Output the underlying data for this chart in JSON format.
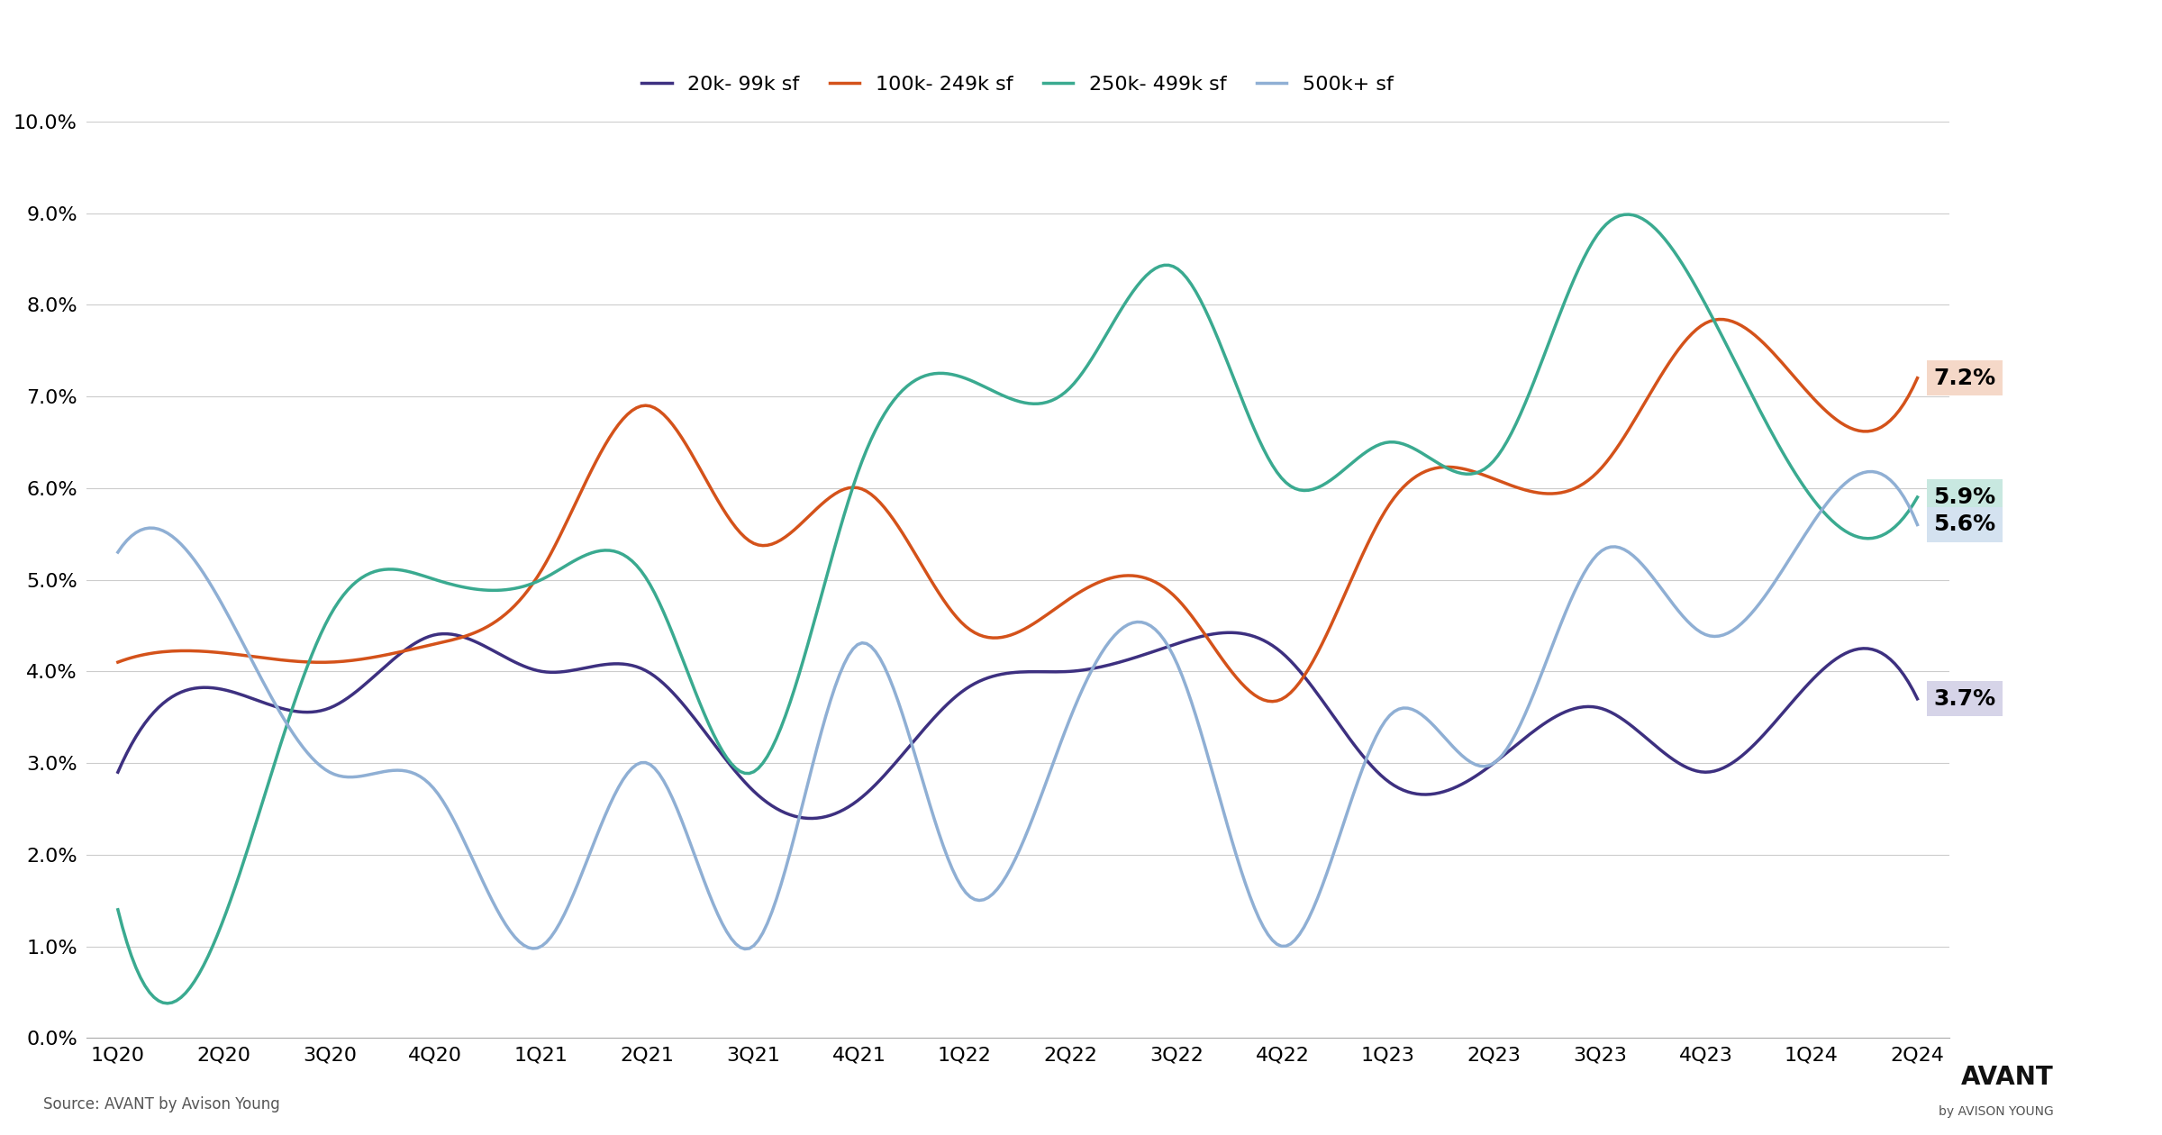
{
  "quarters": [
    "1Q20",
    "2Q20",
    "3Q20",
    "4Q20",
    "1Q21",
    "2Q21",
    "3Q21",
    "4Q21",
    "1Q22",
    "2Q22",
    "3Q22",
    "4Q22",
    "1Q23",
    "2Q23",
    "3Q23",
    "4Q23",
    "1Q24",
    "2Q24"
  ],
  "series": {
    "20k-99k sf": {
      "color": "#3d3080",
      "values": [
        2.9,
        3.8,
        3.6,
        4.4,
        4.0,
        4.0,
        2.7,
        2.6,
        3.8,
        4.0,
        4.3,
        4.2,
        2.8,
        3.0,
        3.6,
        2.9,
        3.9,
        3.7
      ],
      "end_label": "3.7%",
      "label_bg": "#d6d4e8"
    },
    "100k-249k sf": {
      "color": "#d4521a",
      "values": [
        4.1,
        4.2,
        4.1,
        4.3,
        5.1,
        6.9,
        5.4,
        6.0,
        4.5,
        4.8,
        4.8,
        3.7,
        5.8,
        6.1,
        6.2,
        7.8,
        7.0,
        7.2
      ],
      "end_label": "7.2%",
      "label_bg": "#f5d8c8"
    },
    "250k-499k sf": {
      "color": "#3aaa90",
      "values": [
        1.4,
        1.3,
        4.6,
        5.0,
        5.0,
        5.0,
        2.9,
        6.2,
        7.2,
        7.1,
        8.4,
        6.1,
        6.5,
        6.3,
        8.8,
        8.0,
        5.9,
        5.9
      ],
      "end_label": "5.9%",
      "label_bg": "#c8e8e0"
    },
    "500k+ sf": {
      "color": "#8fafd4",
      "values": [
        5.3,
        4.7,
        2.9,
        2.7,
        1.0,
        3.0,
        1.0,
        4.3,
        1.6,
        3.5,
        4.1,
        1.0,
        3.5,
        3.0,
        5.3,
        4.4,
        5.6,
        5.6
      ],
      "end_label": "5.6%",
      "label_bg": "#d4e2f0"
    }
  },
  "ylim": [
    0.0,
    10.0
  ],
  "yticks": [
    0.0,
    1.0,
    2.0,
    3.0,
    4.0,
    5.0,
    6.0,
    7.0,
    8.0,
    9.0,
    10.0
  ],
  "source_text": "Source: AVANT by Avison Young",
  "background_color": "#ffffff",
  "grid_color": "#cccccc"
}
